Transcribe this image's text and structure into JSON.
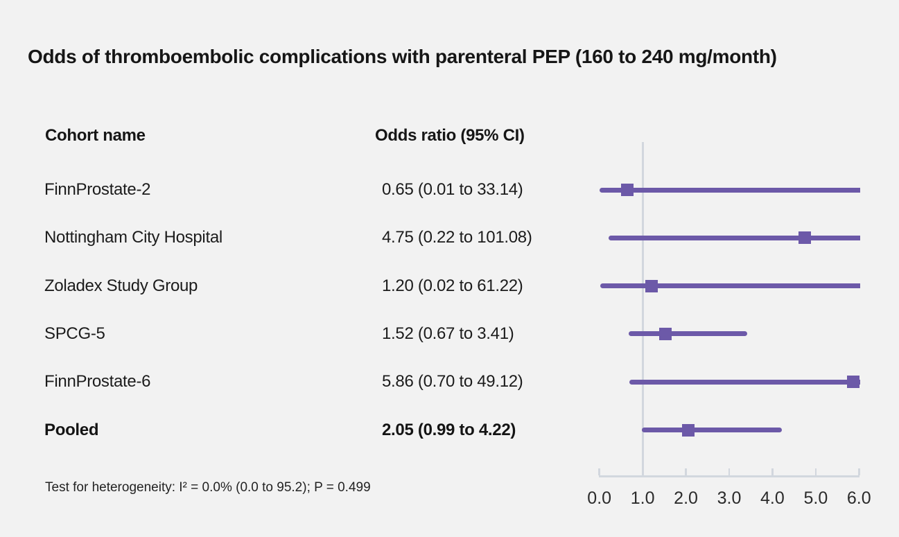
{
  "title": "Odds of thromboembolic complications with parenteral PEP (160 to 240 mg/month)",
  "table": {
    "cohort_header": "Cohort name",
    "or_header": "Odds ratio (95% CI)"
  },
  "footnote": "Test for heterogeneity: I² = 0.0% (0.0 to 95.2); P = 0.499",
  "colors": {
    "background": "#f2f2f2",
    "accent_purple": "#6c59a8",
    "axis_gray": "#d2d7de",
    "text": "#1a1a1a"
  },
  "chart_data": {
    "type": "scatter",
    "subtype": "forest-plot",
    "title": "Odds of thromboembolic complications with parenteral PEP (160 to 240 mg/month)",
    "xlabel": "",
    "ylabel": "",
    "xlim": [
      0.0,
      6.0
    ],
    "reference_line_x": 1.0,
    "grid": false,
    "legend_position": "none",
    "tick_values": [
      0,
      1,
      2,
      3,
      4,
      5,
      6
    ],
    "tick_labels": [
      "0.0",
      "1.0",
      "2.0",
      "3.0",
      "4.0",
      "5.0",
      "6.0"
    ],
    "rows": [
      {
        "label": "FinnProstate-2",
        "or_text": "0.65 (0.01 to 33.14)",
        "est": 0.65,
        "lo": 0.01,
        "hi": 33.14,
        "bold": false
      },
      {
        "label": "Nottingham City Hospital",
        "or_text": "4.75 (0.22 to 101.08)",
        "est": 4.75,
        "lo": 0.22,
        "hi": 101.08,
        "bold": false
      },
      {
        "label": "Zoladex Study Group",
        "or_text": "1.20 (0.02 to 61.22)",
        "est": 1.2,
        "lo": 0.02,
        "hi": 61.22,
        "bold": false
      },
      {
        "label": "SPCG-5",
        "or_text": "1.52 (0.67 to 3.41)",
        "est": 1.52,
        "lo": 0.67,
        "hi": 3.41,
        "bold": false
      },
      {
        "label": "FinnProstate-6",
        "or_text": "5.86 (0.70 to 49.12)",
        "est": 5.86,
        "lo": 0.7,
        "hi": 49.12,
        "bold": false
      },
      {
        "label": "Pooled",
        "or_text": "2.05 (0.99 to 4.22)",
        "est": 2.05,
        "lo": 0.99,
        "hi": 4.22,
        "bold": true
      }
    ]
  }
}
